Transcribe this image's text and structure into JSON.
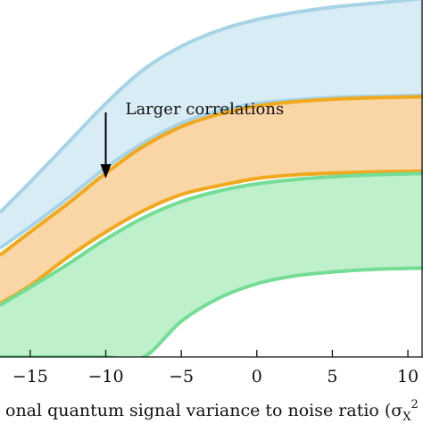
{
  "chart_data": {
    "type": "area",
    "x_visible_range": [
      -17,
      11
    ],
    "ylim": [
      0,
      1
    ],
    "x_ticks": [
      -15,
      -10,
      -5,
      0,
      5,
      10
    ],
    "x_tick_labels": [
      "−15",
      "−10",
      "−5",
      "0",
      "5",
      "10"
    ],
    "xlabel": "onal quantum signal variance to noise ratio (σ",
    "xlabel_sub": "X",
    "xlabel_sup": "2",
    "annotation": {
      "text": "Larger correlations",
      "arrow_x": -10
    },
    "bands": [
      {
        "fill": "#d8ecf6",
        "stroke": "#a7d3e6",
        "points": [
          {
            "x": -17,
            "upper": 0.405,
            "lower": 0.305
          },
          {
            "x": -15,
            "upper": 0.49,
            "lower": 0.365
          },
          {
            "x": -12.5,
            "upper": 0.6,
            "lower": 0.445
          },
          {
            "x": -10,
            "upper": 0.71,
            "lower": 0.53
          },
          {
            "x": -7.5,
            "upper": 0.805,
            "lower": 0.6
          },
          {
            "x": -5,
            "upper": 0.87,
            "lower": 0.655
          },
          {
            "x": -2.5,
            "upper": 0.915,
            "lower": 0.69
          },
          {
            "x": 0,
            "upper": 0.945,
            "lower": 0.71
          },
          {
            "x": 2.5,
            "upper": 0.965,
            "lower": 0.72
          },
          {
            "x": 5,
            "upper": 0.98,
            "lower": 0.727
          },
          {
            "x": 7.5,
            "upper": 0.99,
            "lower": 0.73
          },
          {
            "x": 10,
            "upper": 1.0,
            "lower": 0.732
          },
          {
            "x": 11,
            "upper": 1.005,
            "lower": 0.733
          }
        ]
      },
      {
        "fill": "#fad5a5",
        "stroke": "#f0a81d",
        "points": [
          {
            "x": -17,
            "upper": 0.285,
            "lower": 0.15
          },
          {
            "x": -15,
            "upper": 0.35,
            "lower": 0.2
          },
          {
            "x": -12.5,
            "upper": 0.43,
            "lower": 0.28
          },
          {
            "x": -10,
            "upper": 0.515,
            "lower": 0.35
          },
          {
            "x": -7.5,
            "upper": 0.59,
            "lower": 0.41
          },
          {
            "x": -5,
            "upper": 0.645,
            "lower": 0.455
          },
          {
            "x": -2.5,
            "upper": 0.68,
            "lower": 0.48
          },
          {
            "x": 0,
            "upper": 0.703,
            "lower": 0.5
          },
          {
            "x": 2.5,
            "upper": 0.715,
            "lower": 0.51
          },
          {
            "x": 5,
            "upper": 0.722,
            "lower": 0.515
          },
          {
            "x": 7.5,
            "upper": 0.726,
            "lower": 0.518
          },
          {
            "x": 10,
            "upper": 0.728,
            "lower": 0.52
          },
          {
            "x": 11,
            "upper": 0.729,
            "lower": 0.52
          }
        ]
      },
      {
        "fill": "#bdf0cb",
        "stroke": "#74dd95",
        "points": [
          {
            "x": -17,
            "upper": 0.145,
            "lower": 0.0
          },
          {
            "x": -15,
            "upper": 0.195,
            "lower": 0.0
          },
          {
            "x": -12.5,
            "upper": 0.26,
            "lower": 0.0
          },
          {
            "x": -10,
            "upper": 0.33,
            "lower": 0.0
          },
          {
            "x": -7.5,
            "upper": 0.39,
            "lower": 0.0
          },
          {
            "x": -5,
            "upper": 0.435,
            "lower": 0.1
          },
          {
            "x": -2.5,
            "upper": 0.465,
            "lower": 0.165
          },
          {
            "x": 0,
            "upper": 0.485,
            "lower": 0.205
          },
          {
            "x": 2.5,
            "upper": 0.497,
            "lower": 0.227
          },
          {
            "x": 5,
            "upper": 0.505,
            "lower": 0.238
          },
          {
            "x": 7.5,
            "upper": 0.51,
            "lower": 0.245
          },
          {
            "x": 10,
            "upper": 0.513,
            "lower": 0.248
          },
          {
            "x": 11,
            "upper": 0.514,
            "lower": 0.249
          }
        ]
      }
    ],
    "colors": {
      "axis": "#111111",
      "annotation_arrow": "#000000"
    }
  }
}
